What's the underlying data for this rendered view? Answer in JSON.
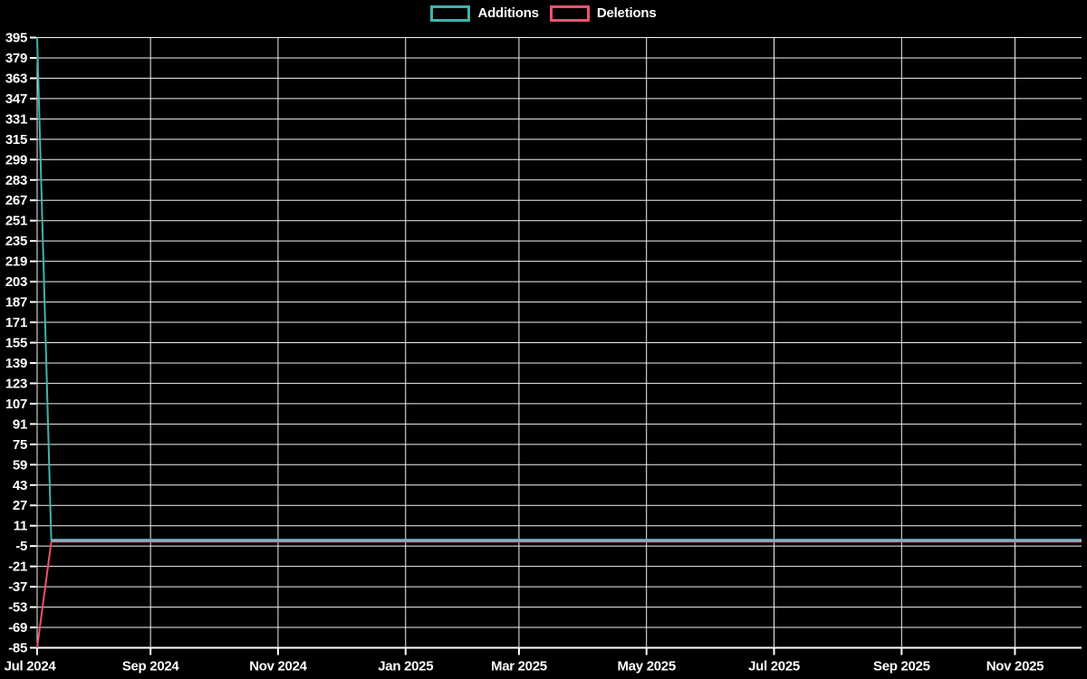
{
  "chart_data": {
    "type": "line",
    "title": "",
    "xlabel": "",
    "ylabel": "",
    "background": "#000000",
    "gridline_color": "#f2f2f2",
    "text_color": "#ffffff",
    "grid": true,
    "legend_position": "top-center",
    "x_axis": {
      "unit": "weeks-from-start",
      "total_weeks": 73.7,
      "ticks": [
        {
          "label": "Jul 2024",
          "week": 0
        },
        {
          "label": "Sep 2024",
          "week": 8
        },
        {
          "label": "Nov 2024",
          "week": 17
        },
        {
          "label": "Jan 2025",
          "week": 26
        },
        {
          "label": "Mar 2025",
          "week": 34
        },
        {
          "label": "May 2025",
          "week": 43
        },
        {
          "label": "Jul 2025",
          "week": 52
        },
        {
          "label": "Sep 2025",
          "week": 61
        },
        {
          "label": "Nov 2025",
          "week": 69
        }
      ]
    },
    "y_axis": {
      "min": -85,
      "max": 395,
      "tick_step": 16,
      "ticks": [
        395,
        379,
        363,
        347,
        331,
        315,
        299,
        283,
        267,
        251,
        235,
        219,
        203,
        187,
        171,
        155,
        139,
        123,
        107,
        91,
        75,
        59,
        43,
        27,
        11,
        -5,
        -21,
        -37,
        -53,
        -69,
        -85
      ]
    },
    "series": [
      {
        "name": "Additions",
        "color": "#3fb3ab",
        "points": [
          [
            0,
            395
          ],
          [
            1,
            0
          ],
          [
            73.7,
            0
          ]
        ]
      },
      {
        "name": "Deletions",
        "color": "#ee5170",
        "points": [
          [
            0,
            -85
          ],
          [
            1,
            -1.5
          ],
          [
            73.7,
            -1.5
          ]
        ]
      }
    ],
    "overlap_line": {
      "comment": "light blue band where the two flat series overlap near zero",
      "color": "#8fb0c9",
      "from_week": 1,
      "value": -0.75
    }
  }
}
